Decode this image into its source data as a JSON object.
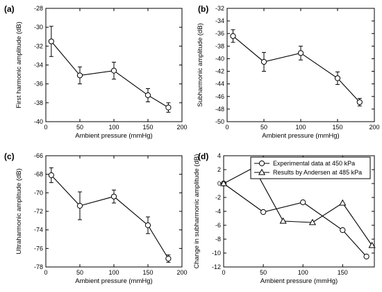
{
  "chart_data": [
    {
      "type": "line",
      "panel_label": "(a)",
      "xlabel": "Ambient pressure (mmHg)",
      "ylabel": "First harmonic amplitude (dB)",
      "xlim": [
        0,
        200
      ],
      "ylim": [
        -40,
        -28
      ],
      "xticks": [
        0,
        50,
        100,
        150,
        200
      ],
      "yticks": [
        -40,
        -38,
        -36,
        -34,
        -32,
        -30,
        -28
      ],
      "grid": false,
      "series": [
        {
          "marker": "circle",
          "x": [
            8,
            50,
            100,
            150,
            180
          ],
          "y": [
            -31.5,
            -35.1,
            -34.6,
            -37.2,
            -38.5
          ],
          "err": [
            1.6,
            0.9,
            0.9,
            0.7,
            0.5
          ]
        }
      ]
    },
    {
      "type": "line",
      "panel_label": "(b)",
      "xlabel": "Ambient pressure (mmHg)",
      "ylabel": "Subharmonic amplitude (dB)",
      "xlim": [
        0,
        200
      ],
      "ylim": [
        -50,
        -32
      ],
      "xticks": [
        0,
        50,
        100,
        150,
        200
      ],
      "yticks": [
        -50,
        -48,
        -46,
        -44,
        -42,
        -40,
        -38,
        -36,
        -34,
        -32
      ],
      "grid": false,
      "series": [
        {
          "marker": "circle",
          "x": [
            8,
            50,
            100,
            150,
            180
          ],
          "y": [
            -36.4,
            -40.5,
            -39.1,
            -43.1,
            -46.9
          ],
          "err": [
            1.0,
            1.5,
            1.1,
            1.0,
            0.6
          ]
        }
      ]
    },
    {
      "type": "line",
      "panel_label": "(c)",
      "xlabel": "Ambient pressure (mmHg)",
      "ylabel": "Ultraharmonic amplitude (dB)",
      "xlim": [
        0,
        200
      ],
      "ylim": [
        -78,
        -66
      ],
      "xticks": [
        0,
        50,
        100,
        150,
        200
      ],
      "yticks": [
        -78,
        -76,
        -74,
        -72,
        -70,
        -68,
        -66
      ],
      "grid": false,
      "series": [
        {
          "marker": "circle",
          "x": [
            8,
            50,
            100,
            150,
            180
          ],
          "y": [
            -68.1,
            -71.4,
            -70.4,
            -73.5,
            -77.1
          ],
          "err": [
            0.8,
            1.5,
            0.7,
            0.9,
            0.4
          ]
        }
      ]
    },
    {
      "type": "line",
      "panel_label": "(d)",
      "xlabel": "Ambient pressure (mmHg)",
      "ylabel": "Change in subharmonic amplitude (dB)",
      "xlim": [
        0,
        190
      ],
      "ylim": [
        -12,
        4
      ],
      "xticks": [
        0,
        50,
        100,
        150
      ],
      "yticks": [
        -12,
        -10,
        -8,
        -6,
        -4,
        -2,
        0,
        2,
        4
      ],
      "grid": false,
      "legend_position": "top-right",
      "series": [
        {
          "name": "Experimental data at 450 kPa",
          "marker": "circle",
          "x": [
            0,
            50,
            100,
            150,
            180
          ],
          "y": [
            0,
            -4.1,
            -2.7,
            -6.7,
            -10.5
          ]
        },
        {
          "name": "Results by Andersen at 485 kPa",
          "marker": "triangle",
          "x": [
            0,
            38,
            75,
            112,
            150,
            187
          ],
          "y": [
            0,
            2.3,
            -5.4,
            -5.6,
            -2.8,
            -8.9
          ]
        }
      ]
    }
  ]
}
